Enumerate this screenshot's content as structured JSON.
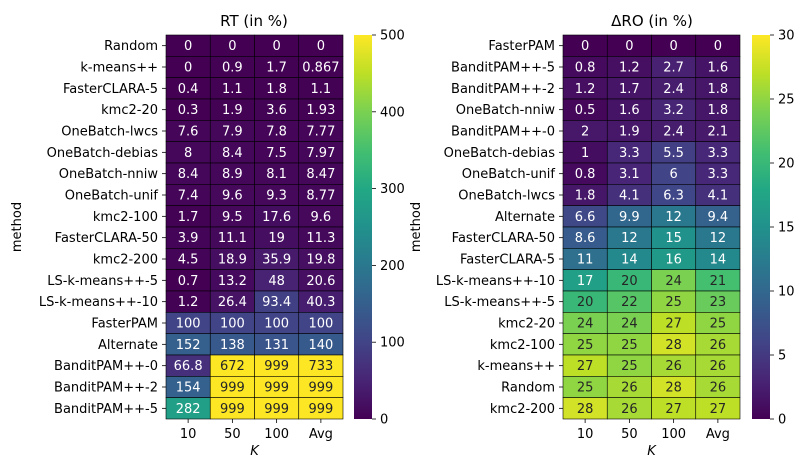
{
  "chart_data": [
    {
      "type": "heatmap",
      "title": "RT (in %)",
      "xlabel": "K",
      "ylabel": "method",
      "columns": [
        "10",
        "50",
        "100",
        "Avg"
      ],
      "rows": [
        "Random",
        "k-means++",
        "FasterCLARA-5",
        "kmc2-20",
        "OneBatch-lwcs",
        "OneBatch-debias",
        "OneBatch-nniw",
        "OneBatch-unif",
        "kmc2-100",
        "FasterCLARA-50",
        "kmc2-200",
        "LS-k-means++-5",
        "LS-k-means++-10",
        "FasterPAM",
        "Alternate",
        "BanditPAM++-0",
        "BanditPAM++-2",
        "BanditPAM++-5"
      ],
      "values": [
        [
          0,
          0,
          0,
          0
        ],
        [
          0,
          0.9,
          1.7,
          0.867
        ],
        [
          0.4,
          1.1,
          1.8,
          1.1
        ],
        [
          0.3,
          1.9,
          3.6,
          1.93
        ],
        [
          7.6,
          7.9,
          7.8,
          7.77
        ],
        [
          8,
          8.4,
          7.5,
          7.97
        ],
        [
          8.4,
          8.9,
          8.1,
          8.47
        ],
        [
          7.4,
          9.6,
          9.3,
          8.77
        ],
        [
          1.7,
          9.5,
          17.6,
          9.6
        ],
        [
          3.9,
          11.1,
          19,
          11.3
        ],
        [
          4.5,
          18.9,
          35.9,
          19.8
        ],
        [
          0.7,
          13.2,
          48,
          20.6
        ],
        [
          1.2,
          26.4,
          93.4,
          40.3
        ],
        [
          100,
          100,
          100,
          100
        ],
        [
          152,
          138,
          131,
          140
        ],
        [
          66.8,
          672,
          999,
          733
        ],
        [
          154,
          999,
          999,
          999
        ],
        [
          282,
          999,
          999,
          999
        ]
      ],
      "colorbar": {
        "min": 0,
        "max": 500,
        "ticks": [
          0,
          100,
          200,
          300,
          400,
          500
        ]
      },
      "colormap": "viridis"
    },
    {
      "type": "heatmap",
      "title": "ΔRO (in %)",
      "xlabel": "K",
      "ylabel": "method",
      "columns": [
        "10",
        "50",
        "100",
        "Avg"
      ],
      "rows": [
        "FasterPAM",
        "BanditPAM++-5",
        "BanditPAM++-2",
        "OneBatch-nniw",
        "BanditPAM++-0",
        "OneBatch-debias",
        "OneBatch-unif",
        "OneBatch-lwcs",
        "Alternate",
        "FasterCLARA-50",
        "FasterCLARA-5",
        "LS-k-means++-10",
        "LS-k-means++-5",
        "kmc2-20",
        "kmc2-100",
        "k-means++",
        "Random",
        "kmc2-200"
      ],
      "values": [
        [
          0,
          0,
          0,
          0
        ],
        [
          0.8,
          1.2,
          2.7,
          1.6
        ],
        [
          1.2,
          1.7,
          2.4,
          1.8
        ],
        [
          0.5,
          1.6,
          3.2,
          1.8
        ],
        [
          2,
          1.9,
          2.4,
          2.1
        ],
        [
          1,
          3.3,
          5.5,
          3.3
        ],
        [
          0.8,
          3.1,
          6,
          3.3
        ],
        [
          1.8,
          4.1,
          6.3,
          4.1
        ],
        [
          6.6,
          9.9,
          12,
          9.4
        ],
        [
          8.6,
          12,
          15,
          12
        ],
        [
          11,
          14,
          16,
          14
        ],
        [
          17,
          20,
          24,
          21
        ],
        [
          20,
          22,
          25,
          23
        ],
        [
          24,
          24,
          27,
          25
        ],
        [
          25,
          25,
          28,
          26
        ],
        [
          27,
          25,
          26,
          26
        ],
        [
          25,
          26,
          28,
          26
        ],
        [
          28,
          26,
          27,
          27
        ]
      ],
      "colorbar": {
        "min": 0,
        "max": 30,
        "ticks": [
          0,
          5,
          10,
          15,
          20,
          25,
          30
        ]
      },
      "colormap": "viridis"
    }
  ]
}
